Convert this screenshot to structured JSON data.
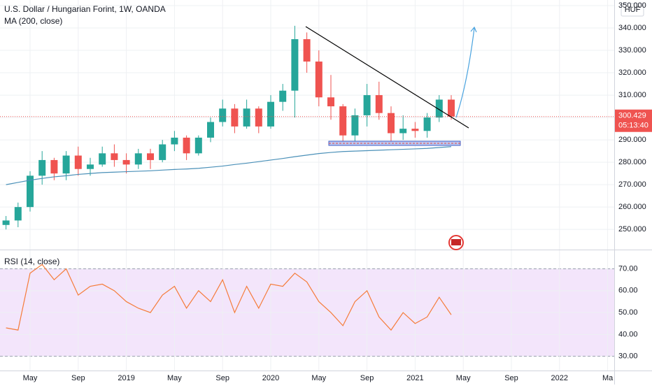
{
  "chart_data": [
    {
      "type": "candlestick",
      "title": "U.S. Dollar / Hungarian Forint, 1W, OANDA",
      "currency": "HUF",
      "up_color": "#26a69a",
      "down_color": "#ef5350",
      "open": [
        252,
        254,
        260,
        274,
        281,
        275,
        283,
        277,
        279,
        284,
        281,
        279,
        284,
        281,
        288,
        291,
        284,
        291,
        298,
        304,
        296,
        304,
        296,
        307,
        312,
        335,
        325,
        309,
        305,
        292,
        301,
        310,
        302,
        293,
        295,
        294,
        300,
        308,
        null,
        null,
        null,
        null,
        null,
        null,
        null,
        null,
        null,
        null,
        null,
        null,
        null
      ],
      "high": [
        256,
        262,
        276,
        285,
        282,
        285,
        287,
        282,
        287,
        288,
        284,
        286,
        286,
        290,
        294,
        292,
        292,
        300,
        308,
        306,
        308,
        305,
        310,
        315,
        341,
        338,
        330,
        319,
        306,
        304,
        315,
        316,
        305,
        301,
        298,
        302,
        310,
        310,
        null,
        null,
        null,
        null,
        null,
        null,
        null,
        null,
        null,
        null,
        null,
        null,
        null
      ],
      "low": [
        250,
        251,
        258,
        270,
        272,
        272,
        274,
        274,
        278,
        278,
        275,
        277,
        277,
        280,
        285,
        281,
        283,
        289,
        296,
        293,
        295,
        293,
        295,
        303,
        300,
        320,
        305,
        299,
        288,
        289,
        296,
        299,
        289,
        290,
        291,
        291,
        298,
        299,
        null,
        null,
        null,
        null,
        null,
        null,
        null,
        null,
        null,
        null,
        null,
        null,
        null
      ],
      "close": [
        254,
        260,
        274,
        281,
        275,
        283,
        277,
        279,
        284,
        281,
        279,
        284,
        281,
        288,
        291,
        284,
        291,
        298,
        304,
        296,
        304,
        296,
        307,
        312,
        335,
        325,
        309,
        305,
        292,
        301,
        310,
        302,
        293,
        295,
        294,
        300,
        308,
        300.429,
        null,
        null,
        null,
        null,
        null,
        null,
        null,
        null,
        null,
        null,
        null,
        null,
        null
      ],
      "ma_label": "MA (200, close)",
      "ma_color": "#4a90b8",
      "ma_values": [
        270,
        271,
        272,
        272.8,
        273.5,
        274,
        274.6,
        275,
        275.4,
        275.6,
        275.8,
        276,
        276.2,
        276.5,
        276.8,
        277,
        277.3,
        277.8,
        278.3,
        279,
        279.6,
        280.3,
        281,
        281.7,
        282.5,
        283.2,
        283.9,
        284.4,
        284.8,
        285,
        285.2,
        285.4,
        285.6,
        285.8,
        286,
        286.2,
        286.6,
        287,
        null,
        null,
        null,
        null,
        null,
        null,
        null,
        null,
        null,
        null,
        null,
        null,
        null
      ],
      "last_price": {
        "value": 300.429,
        "label": "300.429"
      },
      "countdown": "05:13:40",
      "ylim": [
        241,
        352.5
      ],
      "yticks": [
        {
          "value": 250,
          "label": "250.000"
        },
        {
          "value": 260,
          "label": "260.000"
        },
        {
          "value": 270,
          "label": "270.000"
        },
        {
          "value": 280,
          "label": "280.000"
        },
        {
          "value": 290,
          "label": "290.000"
        },
        {
          "value": 300,
          "label": "300.000"
        },
        {
          "value": 310,
          "label": "310.000"
        },
        {
          "value": 320,
          "label": "320.000"
        },
        {
          "value": 330,
          "label": "330.000"
        },
        {
          "value": 340,
          "label": "340.000"
        },
        {
          "value": 350,
          "label": "350.000"
        }
      ]
    },
    {
      "type": "line",
      "title": "RSI (14, close)",
      "color": "#f57c3a",
      "band_color": "#f3e5fb",
      "categories": [
        null,
        null,
        "May",
        null,
        null,
        null,
        "Sep",
        null,
        null,
        null,
        "2019",
        null,
        null,
        null,
        "May",
        null,
        null,
        null,
        "Sep",
        null,
        null,
        null,
        "2020",
        null,
        null,
        null,
        "May",
        null,
        null,
        null,
        "Sep",
        null,
        null,
        null,
        "2021",
        null,
        null,
        null,
        "May",
        null,
        null,
        null,
        "Sep",
        null,
        null,
        null,
        "2022",
        null,
        null,
        null,
        "Ma"
      ],
      "values": [
        43,
        42,
        68,
        72,
        65,
        70,
        58,
        62,
        63,
        60,
        55,
        52,
        50,
        58,
        62,
        52,
        60,
        55,
        65,
        50,
        62,
        52,
        63,
        62,
        68,
        64,
        55,
        50,
        44,
        55,
        60,
        48,
        42,
        50,
        45,
        48,
        57,
        49,
        null,
        null,
        null,
        null,
        null,
        null,
        null,
        null,
        null,
        null,
        null,
        null,
        null
      ],
      "ylim": [
        23.5,
        78.8
      ],
      "yticks": [
        {
          "value": 30,
          "label": "30.00"
        },
        {
          "value": 40,
          "label": "40.00"
        },
        {
          "value": 50,
          "label": "50.00"
        },
        {
          "value": 60,
          "label": "60.00"
        },
        {
          "value": 70,
          "label": "70.00"
        }
      ]
    }
  ]
}
